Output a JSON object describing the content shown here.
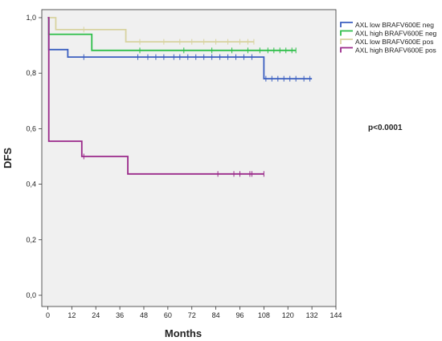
{
  "chart_data": {
    "type": "line",
    "step": true,
    "xlabel": "Months",
    "ylabel": "DFS",
    "xlim": [
      -3,
      144
    ],
    "ylim": [
      0,
      1
    ],
    "xticks": [
      0,
      12,
      24,
      36,
      48,
      60,
      72,
      84,
      96,
      108,
      120,
      132,
      144
    ],
    "yticks": [
      0.0,
      0.2,
      0.4,
      0.6,
      0.8,
      1.0
    ],
    "ytick_labels": [
      "0,0",
      "0,2",
      "0,4",
      "0,6",
      "0,8",
      "1,0"
    ],
    "xtick_labels": [
      "0",
      "12",
      "24",
      "36",
      "48",
      "60",
      "72",
      "84",
      "96",
      "108",
      "120",
      "132",
      "144"
    ],
    "grid": false,
    "legend_position": "right",
    "annotation": "p<0.0001",
    "series": [
      {
        "name": "AXL low BRAFV600E neg",
        "color": "#3b5fc0",
        "steps": [
          [
            0,
            1.0
          ],
          [
            0.5,
            0.885
          ],
          [
            10,
            0.858
          ],
          [
            108,
            0.78
          ],
          [
            132,
            0.78
          ]
        ],
        "censored": [
          [
            18,
            0.858
          ],
          [
            45,
            0.858
          ],
          [
            50,
            0.858
          ],
          [
            54,
            0.858
          ],
          [
            58,
            0.858
          ],
          [
            63,
            0.858
          ],
          [
            66,
            0.858
          ],
          [
            70,
            0.858
          ],
          [
            74,
            0.858
          ],
          [
            78,
            0.858
          ],
          [
            82,
            0.858
          ],
          [
            86,
            0.858
          ],
          [
            90,
            0.858
          ],
          [
            94,
            0.858
          ],
          [
            98,
            0.858
          ],
          [
            102,
            0.858
          ],
          [
            109,
            0.78
          ],
          [
            112,
            0.78
          ],
          [
            115,
            0.78
          ],
          [
            118,
            0.78
          ],
          [
            121,
            0.78
          ],
          [
            124,
            0.78
          ],
          [
            128,
            0.78
          ],
          [
            131,
            0.78
          ]
        ]
      },
      {
        "name": "AXL high BRAFV600E neg",
        "color": "#2fbf4a",
        "steps": [
          [
            0,
            1.0
          ],
          [
            0.5,
            0.94
          ],
          [
            22,
            0.882
          ],
          [
            124,
            0.882
          ]
        ],
        "censored": [
          [
            46,
            0.882
          ],
          [
            68,
            0.882
          ],
          [
            82,
            0.882
          ],
          [
            92,
            0.882
          ],
          [
            100,
            0.882
          ],
          [
            106,
            0.882
          ],
          [
            110,
            0.882
          ],
          [
            113,
            0.882
          ],
          [
            116,
            0.882
          ],
          [
            119,
            0.882
          ],
          [
            122,
            0.882
          ],
          [
            124,
            0.882
          ]
        ]
      },
      {
        "name": "AXL low BRAFV600E pos",
        "color": "#d8d3a0",
        "steps": [
          [
            0,
            1.0
          ],
          [
            4,
            0.957
          ],
          [
            39,
            0.913
          ],
          [
            103,
            0.913
          ]
        ],
        "censored": [
          [
            18,
            0.957
          ],
          [
            46,
            0.913
          ],
          [
            58,
            0.913
          ],
          [
            66,
            0.913
          ],
          [
            72,
            0.913
          ],
          [
            78,
            0.913
          ],
          [
            84,
            0.913
          ],
          [
            90,
            0.913
          ],
          [
            96,
            0.913
          ],
          [
            100,
            0.913
          ],
          [
            103,
            0.913
          ]
        ]
      },
      {
        "name": "AXL high BRAFV600E pos",
        "color": "#9a2a8a",
        "steps": [
          [
            0,
            1.0
          ],
          [
            0.5,
            0.555
          ],
          [
            17,
            0.5
          ],
          [
            40,
            0.437
          ],
          [
            108,
            0.437
          ]
        ],
        "censored": [
          [
            18,
            0.5
          ],
          [
            85,
            0.437
          ],
          [
            93,
            0.437
          ],
          [
            96,
            0.437
          ],
          [
            101,
            0.437
          ],
          [
            102,
            0.437
          ],
          [
            108,
            0.437
          ]
        ]
      }
    ]
  }
}
